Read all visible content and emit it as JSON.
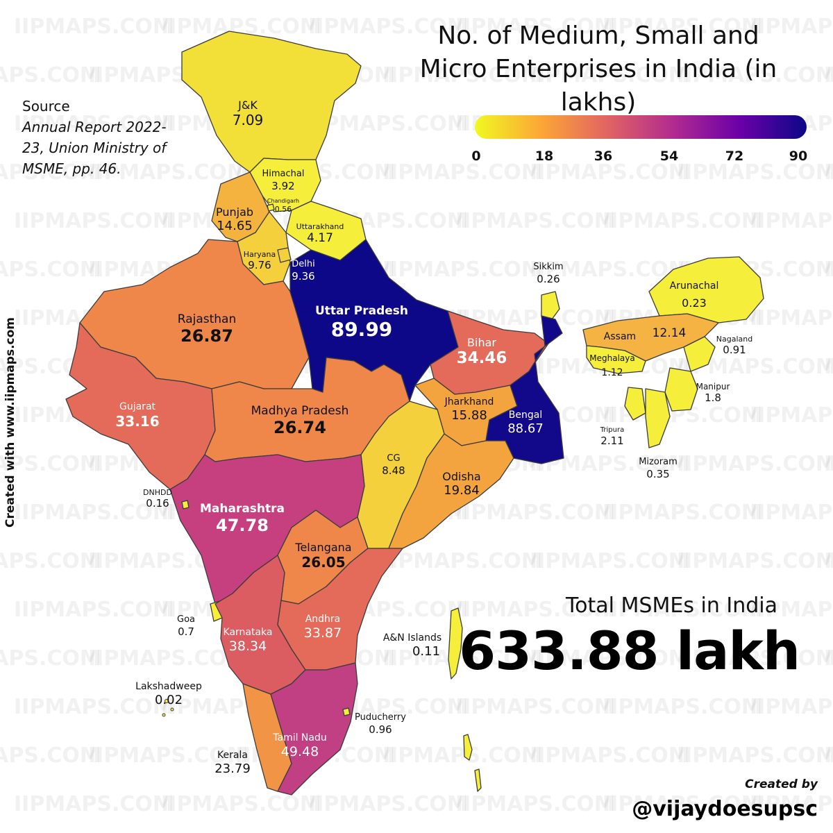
{
  "watermark": "IIPMAPS.COM",
  "title": "No. of Medium, Small and Micro Enterprises in India (in lakhs)",
  "legend": {
    "ticks": [
      "0",
      "18",
      "36",
      "54",
      "72",
      "90"
    ],
    "colors": [
      "#f0f921",
      "#fca636",
      "#e16462",
      "#b12a90",
      "#6a00a8",
      "#0d0887"
    ]
  },
  "source": {
    "label": "Source",
    "text": "Annual Report 2022-23, Union Ministry of MSME, pp. 46."
  },
  "created_with": "Created with www.iipmaps.com",
  "total": {
    "label": "Total MSMEs in India",
    "value": "633.88 lakh"
  },
  "credit": {
    "label": "Created by",
    "handle": "@vijaydoesupsc"
  },
  "regions": {
    "jk": {
      "name": "J&K",
      "value": "7.09",
      "color": "#f2df37"
    },
    "himachal": {
      "name": "Himachal",
      "value": "3.92",
      "color": "#f5ee3a"
    },
    "chandigarh": {
      "name": "Chandigarh",
      "value": "0.56",
      "color": "#f5ee3a"
    },
    "punjab": {
      "name": "Punjab",
      "value": "14.65",
      "color": "#f3b33e"
    },
    "uttarakhand": {
      "name": "Uttarakhand",
      "value": "4.17",
      "color": "#f5ee3a"
    },
    "haryana": {
      "name": "Haryana",
      "value": "9.76",
      "color": "#f3d03c"
    },
    "delhi": {
      "name": "Delhi",
      "value": "9.36",
      "color": "#f3d03c"
    },
    "rajasthan": {
      "name": "Rajasthan",
      "value": "26.87",
      "color": "#ee8749"
    },
    "uttar_pradesh": {
      "name": "Uttar Pradesh",
      "value": "89.99",
      "color": "#0d0887"
    },
    "bihar": {
      "name": "Bihar",
      "value": "34.46",
      "color": "#e46a59"
    },
    "sikkim": {
      "name": "Sikkim",
      "value": "0.26",
      "color": "#f5ee3a"
    },
    "arunachal": {
      "name": "Arunachal",
      "value": "0.23",
      "color": "#f5ee3a"
    },
    "assam": {
      "name": "Assam",
      "value": "12.14",
      "color": "#f4b342"
    },
    "nagaland": {
      "name": "Nagaland",
      "value": "0.91",
      "color": "#f5ee3a"
    },
    "meghalaya": {
      "name": "Meghalaya",
      "value": "1.12",
      "color": "#f5ee3a"
    },
    "manipur": {
      "name": "Manipur",
      "value": "1.8",
      "color": "#f5ee3a"
    },
    "tripura": {
      "name": "Tripura",
      "value": "2.11",
      "color": "#f5ee3a"
    },
    "mizoram": {
      "name": "Mizoram",
      "value": "0.35",
      "color": "#f5ee3a"
    },
    "gujarat": {
      "name": "Gujarat",
      "value": "33.16",
      "color": "#e46a59"
    },
    "madhya_pradesh": {
      "name": "Madhya Pradesh",
      "value": "26.74",
      "color": "#ee8749"
    },
    "jharkhand": {
      "name": "Jharkhand",
      "value": "15.88",
      "color": "#f4a43e"
    },
    "bengal": {
      "name": "Bengal",
      "value": "88.67",
      "color": "#12088a"
    },
    "cg": {
      "name": "CG",
      "value": "8.48",
      "color": "#f3d03c"
    },
    "odisha": {
      "name": "Odisha",
      "value": "19.84",
      "color": "#f4a43e"
    },
    "dnhdd": {
      "name": "DNHDD",
      "value": "0.16",
      "color": "#f5ee3a"
    },
    "maharashtra": {
      "name": "Maharashtra",
      "value": "47.78",
      "color": "#c6407f"
    },
    "telangana": {
      "name": "Telangana",
      "value": "26.05",
      "color": "#ee8749"
    },
    "goa": {
      "name": "Goa",
      "value": "0.7",
      "color": "#f5ee3a"
    },
    "karnataka": {
      "name": "Karnataka",
      "value": "38.34",
      "color": "#dc5d61"
    },
    "andhra": {
      "name": "Andhra",
      "value": "33.87",
      "color": "#e46a59"
    },
    "an_islands": {
      "name": "A&N Islands",
      "value": "0.11",
      "color": "#f5ee3a"
    },
    "lakshadweep": {
      "name": "Lakshadweep",
      "value": "0.02",
      "color": "#f5ee3a"
    },
    "kerala": {
      "name": "Kerala",
      "value": "23.79",
      "color": "#f19445"
    },
    "tamil_nadu": {
      "name": "Tamil Nadu",
      "value": "49.48",
      "color": "#c13f83"
    },
    "puducherry": {
      "name": "Puducherry",
      "value": "0.96",
      "color": "#f5ee3a"
    }
  }
}
